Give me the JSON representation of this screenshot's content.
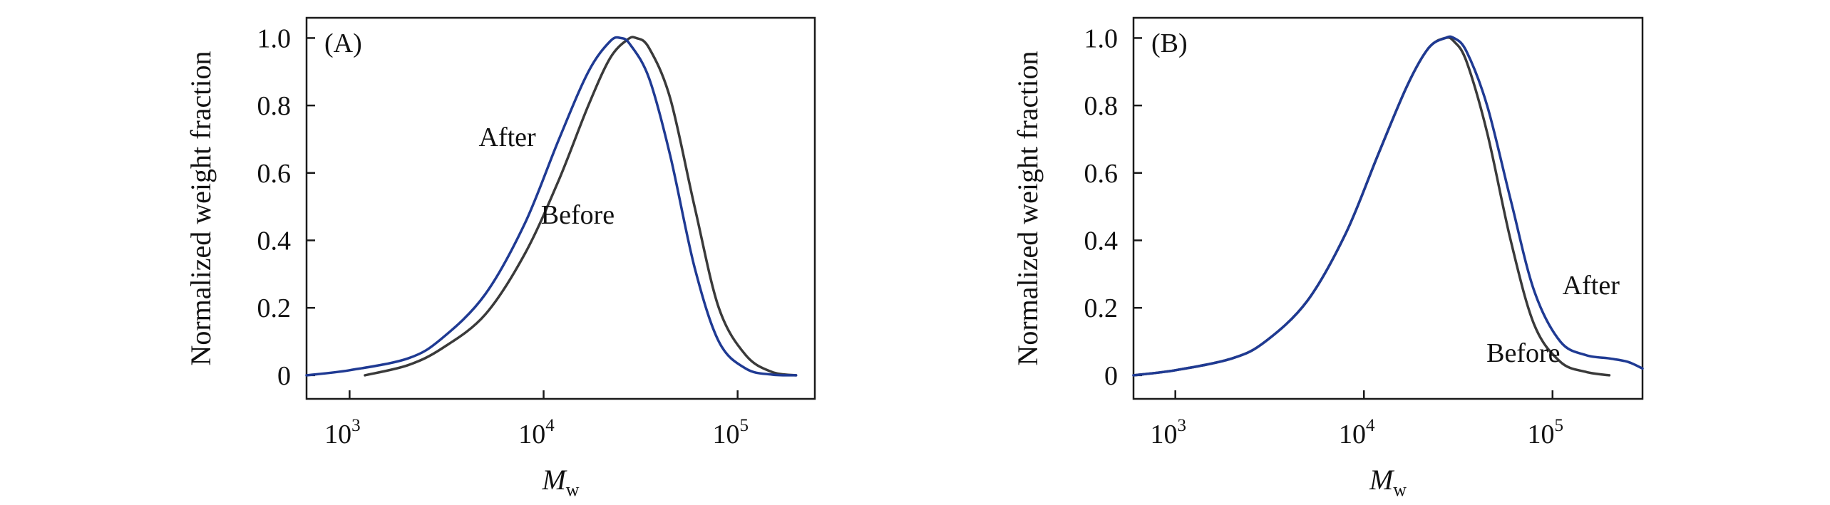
{
  "chart_data": [
    {
      "type": "line",
      "panel_label": "(A)",
      "xlabel": "M",
      "xlabel_subscript": "w",
      "ylabel": "Normalized weight fraction",
      "x_scale": "log",
      "xlim": [
        600,
        250000
      ],
      "ylim": [
        -0.07,
        1.06
      ],
      "x_ticks": [
        {
          "base": "10",
          "exp": "3",
          "value": 1000
        },
        {
          "base": "10",
          "exp": "4",
          "value": 10000
        },
        {
          "base": "10",
          "exp": "5",
          "value": 100000
        }
      ],
      "y_ticks": [
        {
          "label": "0",
          "value": 0
        },
        {
          "label": "0.2",
          "value": 0.2
        },
        {
          "label": "0.4",
          "value": 0.4
        },
        {
          "label": "0.6",
          "value": 0.6
        },
        {
          "label": "0.8",
          "value": 0.8
        },
        {
          "label": "1.0",
          "value": 1.0
        }
      ],
      "series": [
        {
          "name": "Before",
          "color": "#3a3a3a",
          "x": [
            1200,
            2000,
            3000,
            5000,
            8000,
            12000,
            17000,
            22000,
            27000,
            30000,
            35000,
            45000,
            60000,
            80000,
            110000,
            150000,
            200000
          ],
          "y": [
            0.0,
            0.03,
            0.08,
            0.18,
            0.36,
            0.58,
            0.8,
            0.94,
            0.995,
            1.0,
            0.97,
            0.82,
            0.5,
            0.2,
            0.06,
            0.01,
            0.0
          ]
        },
        {
          "name": "After",
          "color": "#1f3a93",
          "x": [
            600,
            1000,
            2000,
            3000,
            5000,
            8000,
            12000,
            17000,
            22000,
            25000,
            28000,
            35000,
            45000,
            60000,
            80000,
            110000,
            150000,
            200000
          ],
          "y": [
            0.0,
            0.015,
            0.05,
            0.11,
            0.24,
            0.45,
            0.7,
            0.9,
            0.99,
            1.0,
            0.98,
            0.88,
            0.65,
            0.32,
            0.1,
            0.02,
            0.002,
            0.0
          ]
        }
      ],
      "annotations": [
        {
          "text": "After",
          "x": 6500,
          "y": 0.68
        },
        {
          "text": "Before",
          "x": 15000,
          "y": 0.45
        }
      ]
    },
    {
      "type": "line",
      "panel_label": "(B)",
      "xlabel": "M",
      "xlabel_subscript": "w",
      "ylabel": "Normalized weight fraction",
      "x_scale": "log",
      "xlim": [
        600,
        300000
      ],
      "ylim": [
        -0.07,
        1.06
      ],
      "x_ticks": [
        {
          "base": "10",
          "exp": "3",
          "value": 1000
        },
        {
          "base": "10",
          "exp": "4",
          "value": 10000
        },
        {
          "base": "10",
          "exp": "5",
          "value": 100000
        }
      ],
      "y_ticks": [
        {
          "label": "0",
          "value": 0
        },
        {
          "label": "0.2",
          "value": 0.2
        },
        {
          "label": "0.4",
          "value": 0.4
        },
        {
          "label": "0.6",
          "value": 0.6
        },
        {
          "label": "0.8",
          "value": 0.8
        },
        {
          "label": "1.0",
          "value": 1.0
        }
      ],
      "series": [
        {
          "name": "Before",
          "color": "#3a3a3a",
          "x": [
            600,
            1000,
            2000,
            3000,
            5000,
            8000,
            12000,
            17000,
            22000,
            27000,
            30000,
            35000,
            45000,
            60000,
            80000,
            110000,
            150000,
            200000
          ],
          "y": [
            0.0,
            0.015,
            0.05,
            0.1,
            0.22,
            0.42,
            0.66,
            0.86,
            0.97,
            1.0,
            0.99,
            0.93,
            0.72,
            0.4,
            0.15,
            0.04,
            0.01,
            0.0
          ]
        },
        {
          "name": "After",
          "color": "#1f3a93",
          "x": [
            600,
            1000,
            2000,
            3000,
            5000,
            8000,
            12000,
            17000,
            22000,
            27000,
            30000,
            35000,
            45000,
            60000,
            80000,
            110000,
            150000,
            200000,
            250000,
            300000
          ],
          "y": [
            0.0,
            0.015,
            0.05,
            0.1,
            0.22,
            0.42,
            0.66,
            0.86,
            0.97,
            1.0,
            1.0,
            0.96,
            0.8,
            0.52,
            0.25,
            0.1,
            0.06,
            0.05,
            0.04,
            0.02
          ]
        }
      ],
      "annotations": [
        {
          "text": "After",
          "x": 160000,
          "y": 0.24
        },
        {
          "text": "Before",
          "x": 70000,
          "y": 0.04
        }
      ]
    }
  ]
}
